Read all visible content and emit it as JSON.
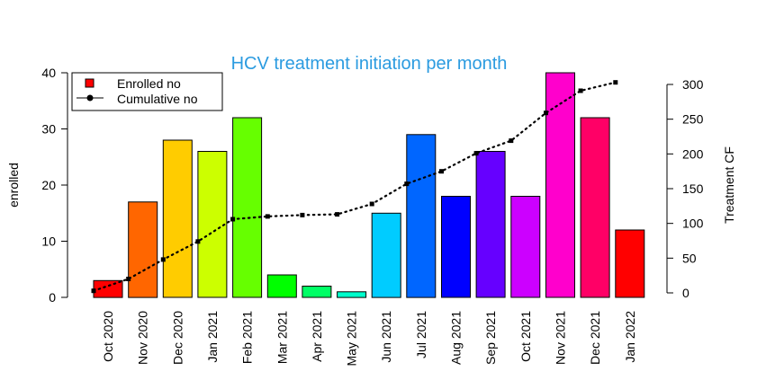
{
  "chart_data": {
    "type": "bar",
    "title": "HCV treatment initiation per month",
    "ylabel": "enrolled",
    "y2label": "Treatment CF",
    "ylim": [
      0,
      40
    ],
    "y2lim": [
      0,
      300
    ],
    "yticks": [
      "0",
      "10",
      "20",
      "30",
      "40"
    ],
    "y2ticks": [
      "0",
      "50",
      "100",
      "150",
      "200",
      "250",
      "300"
    ],
    "categories": [
      "Oct 2020",
      "Nov 2020",
      "Dec 2020",
      "Jan 2021",
      "Feb 2021",
      "Mar 2021",
      "Apr 2021",
      "May 2021",
      "Jun 2021",
      "Jul 2021",
      "Aug 2021",
      "Sep 2021",
      "Oct 2021",
      "Nov 2021",
      "Dec 2021",
      "Jan 2022"
    ],
    "series": [
      {
        "name": "Enrolled no",
        "type": "bar",
        "axis": "left",
        "values": [
          3,
          17,
          28,
          26,
          32,
          4,
          2,
          1,
          15,
          29,
          18,
          26,
          18,
          40,
          32,
          12
        ],
        "colors": [
          "#FF0000",
          "#FF6600",
          "#FFCC00",
          "#CCFF00",
          "#66FF00",
          "#00FF00",
          "#00FF66",
          "#00FFCC",
          "#00CCFF",
          "#0066FF",
          "#0000FF",
          "#6600FF",
          "#CC00FF",
          "#FF00CC",
          "#FF0066",
          "#FF0000"
        ]
      },
      {
        "name": "Cumulative no",
        "type": "line",
        "axis": "right",
        "style": "dotted",
        "values": [
          3,
          20,
          48,
          74,
          106,
          110,
          112,
          113,
          128,
          157,
          175,
          201,
          219,
          259,
          291,
          303
        ]
      }
    ],
    "legend": {
      "position": "top-left",
      "items": [
        "Enrolled no",
        "Cumulative no"
      ]
    },
    "grid": false
  }
}
